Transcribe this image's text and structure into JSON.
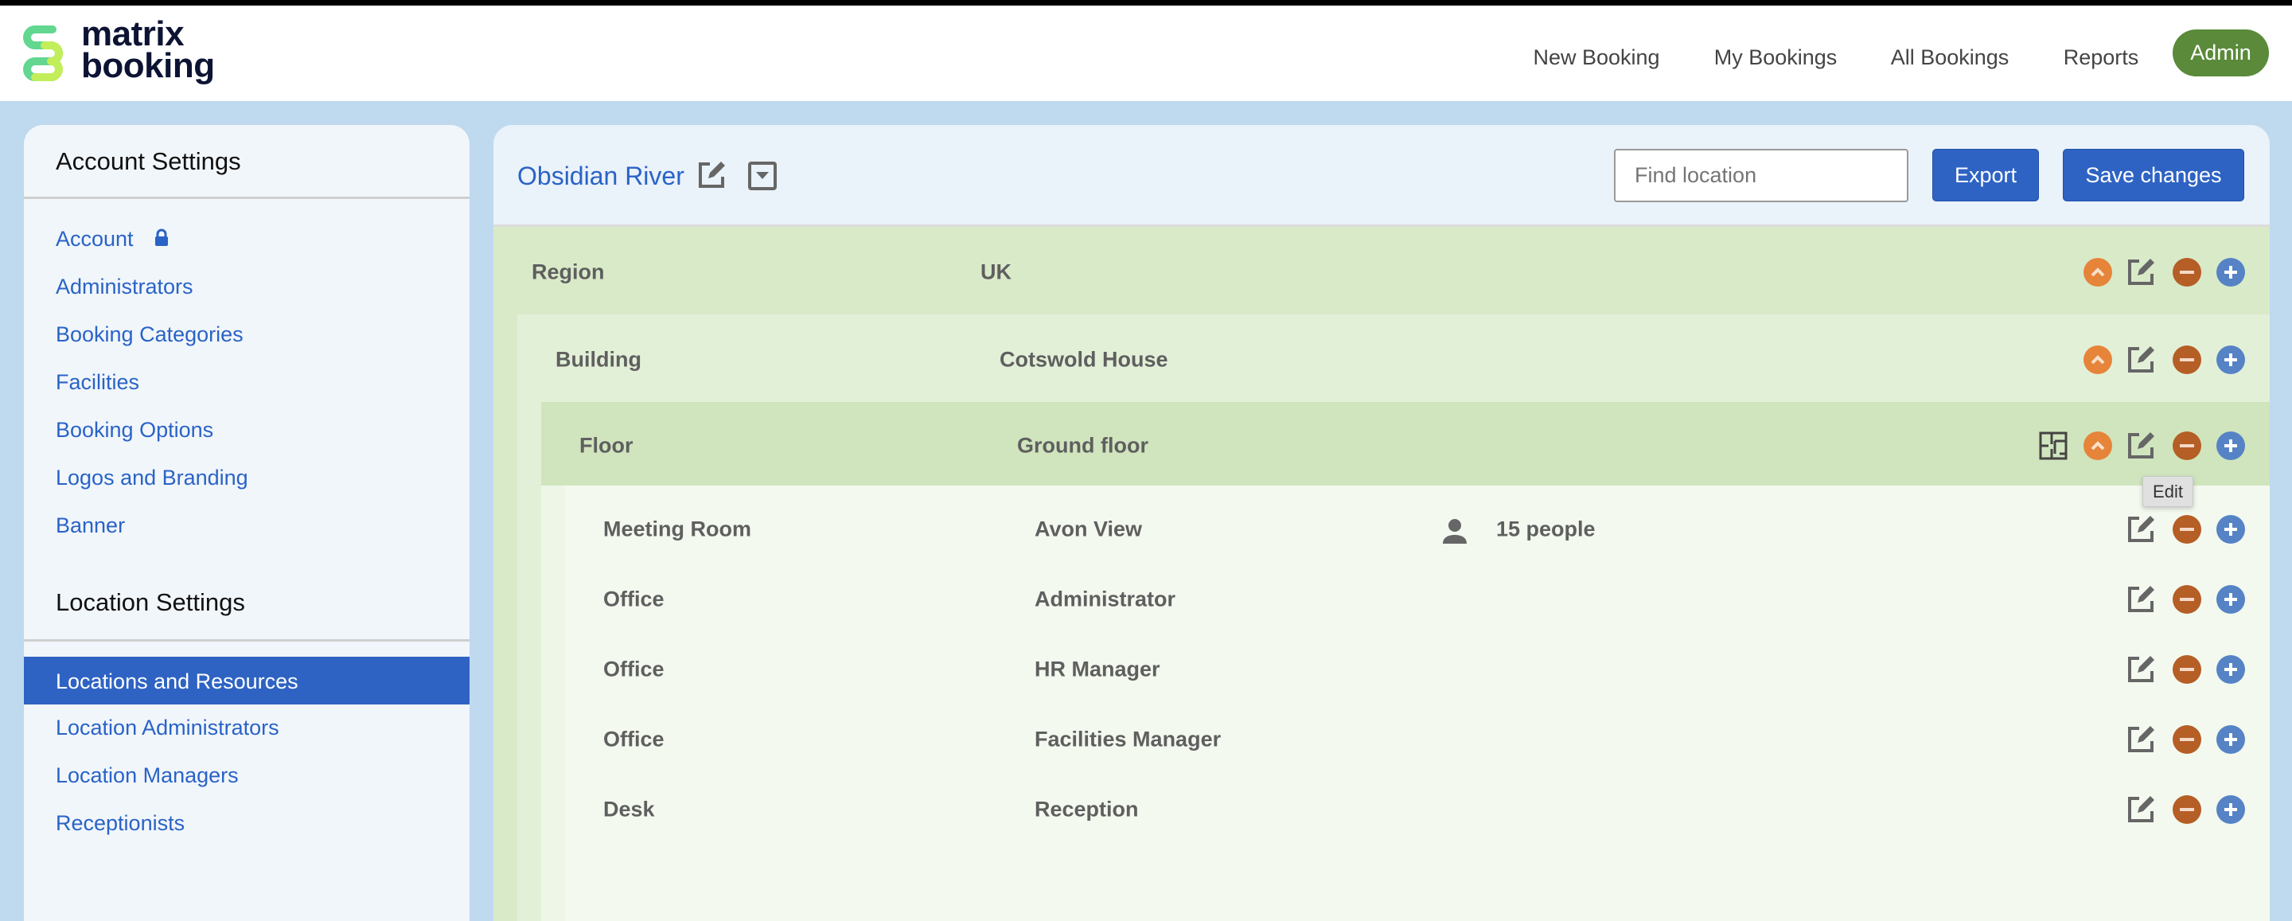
{
  "app": {
    "logo_line1": "matrix",
    "logo_line2": "booking"
  },
  "nav": {
    "items": [
      "New Booking",
      "My Bookings",
      "All Bookings",
      "Reports"
    ],
    "admin": "Admin"
  },
  "sidebar": {
    "account_heading": "Account Settings",
    "account_items": [
      "Account",
      "Administrators",
      "Booking Categories",
      "Facilities",
      "Booking Options",
      "Logos and Branding",
      "Banner"
    ],
    "location_heading": "Location Settings",
    "location_items": [
      "Locations and Resources",
      "Location Administrators",
      "Location Managers",
      "Receptionists"
    ],
    "active_item": "Locations and Resources"
  },
  "main": {
    "title": "Obsidian River",
    "find_placeholder": "Find location",
    "export_label": "Export",
    "save_label": "Save changes",
    "tooltip": "Edit",
    "rows": [
      {
        "type": "Region",
        "name": "UK"
      },
      {
        "type": "Building",
        "name": "Cotswold House"
      },
      {
        "type": "Floor",
        "name": "Ground floor"
      },
      {
        "type": "Meeting Room",
        "name": "Avon View",
        "capacity": "15 people"
      },
      {
        "type": "Office",
        "name": "Administrator"
      },
      {
        "type": "Office",
        "name": "HR Manager"
      },
      {
        "type": "Office",
        "name": "Facilities Manager"
      },
      {
        "type": "Desk",
        "name": "Reception"
      }
    ]
  },
  "colors": {
    "accent": "#2e63c3",
    "admin": "#5a8a3a",
    "up": "#e6843a",
    "remove": "#b55e26",
    "add": "#5583c5"
  }
}
